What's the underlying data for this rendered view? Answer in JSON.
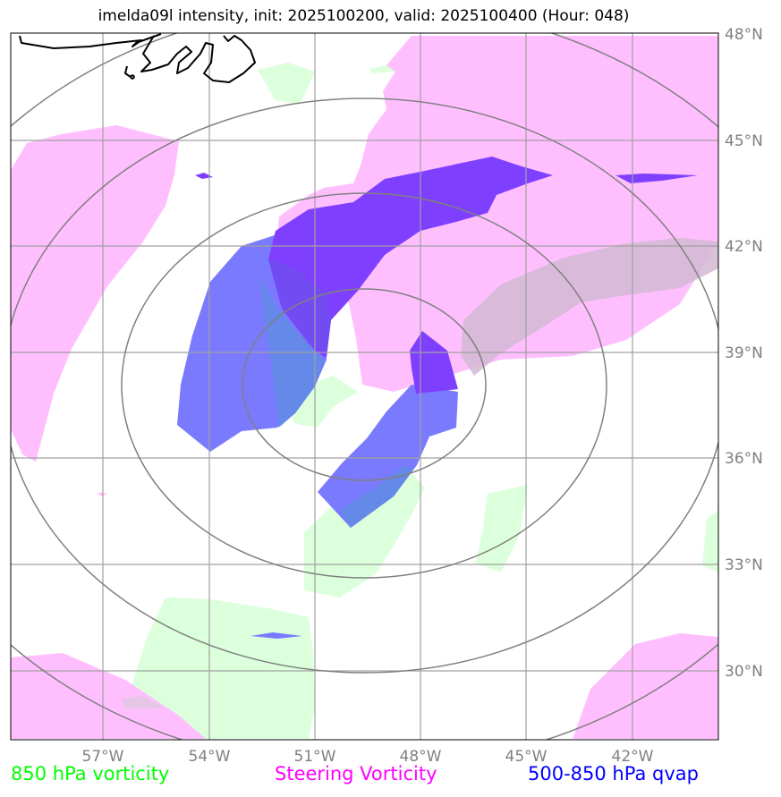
{
  "title": "imelda09l intensity, init: 2025100200, valid: 2025100400 (Hour: 048)",
  "map": {
    "lon_ticks": [
      "57°W",
      "54°W",
      "51°W",
      "48°W",
      "45°W",
      "42°W"
    ],
    "lat_ticks": [
      "48°N",
      "45°N",
      "42°N",
      "39°N",
      "36°N",
      "33°N",
      "30°N"
    ],
    "gridlines": true,
    "range_rings": 4,
    "center": {
      "lat": 38.9,
      "lon": -49.8
    }
  },
  "legend": {
    "vorticity_850": {
      "label": "850 hPa vorticity",
      "color": "#00ff00"
    },
    "steering_vorticity": {
      "label": "Steering Vorticity",
      "color": "#ff00ff"
    },
    "qvap_500_850": {
      "label": "500-850 hPa qvap",
      "color": "#0000ff"
    }
  },
  "colors": {
    "green_fill": "#dcffdc",
    "magenta_fill": "#ffbfff",
    "blue_fill": "#7a7aff",
    "purple_fill": "#7f3fff",
    "grid": "#a0a0a0",
    "rings": "#808080"
  }
}
